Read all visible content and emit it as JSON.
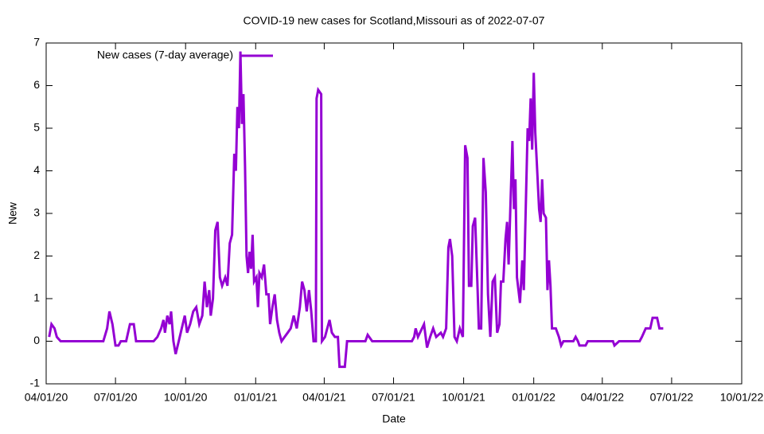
{
  "chart_data": {
    "type": "line",
    "title": "COVID-19 new cases for Scotland,Missouri as of 2022-07-07",
    "x_label": "Date",
    "y_label": "New",
    "legend_position": "top-left",
    "xlim": [
      "2020-04-01",
      "2022-10-01"
    ],
    "xticks": [
      {
        "value": "2020-04-01",
        "label": "04/01/20"
      },
      {
        "value": "2020-07-01",
        "label": "07/01/20"
      },
      {
        "value": "2020-10-01",
        "label": "10/01/20"
      },
      {
        "value": "2021-01-01",
        "label": "01/01/21"
      },
      {
        "value": "2021-04-01",
        "label": "04/01/21"
      },
      {
        "value": "2021-07-01",
        "label": "07/01/21"
      },
      {
        "value": "2021-10-01",
        "label": "10/01/21"
      },
      {
        "value": "2022-01-01",
        "label": "01/01/22"
      },
      {
        "value": "2022-04-01",
        "label": "04/01/22"
      },
      {
        "value": "2022-07-01",
        "label": "07/01/22"
      },
      {
        "value": "2022-10-01",
        "label": "10/01/22"
      }
    ],
    "ylim": [
      -1,
      7
    ],
    "yticks": [
      -1,
      0,
      1,
      2,
      3,
      4,
      5,
      6,
      7
    ],
    "x": [
      "2020-04-05",
      "2020-04-08",
      "2020-04-12",
      "2020-04-15",
      "2020-04-20",
      "2020-05-15",
      "2020-06-15",
      "2020-06-20",
      "2020-06-23",
      "2020-06-27",
      "2020-07-01",
      "2020-07-05",
      "2020-07-08",
      "2020-07-15",
      "2020-07-20",
      "2020-07-25",
      "2020-07-28",
      "2020-08-20",
      "2020-08-25",
      "2020-08-30",
      "2020-09-02",
      "2020-09-04",
      "2020-09-07",
      "2020-09-10",
      "2020-09-12",
      "2020-09-15",
      "2020-09-18",
      "2020-09-22",
      "2020-09-26",
      "2020-09-30",
      "2020-10-03",
      "2020-10-07",
      "2020-10-11",
      "2020-10-15",
      "2020-10-19",
      "2020-10-23",
      "2020-10-26",
      "2020-10-29",
      "2020-11-01",
      "2020-11-03",
      "2020-11-06",
      "2020-11-09",
      "2020-11-12",
      "2020-11-15",
      "2020-11-18",
      "2020-11-22",
      "2020-11-25",
      "2020-11-28",
      "2020-12-01",
      "2020-12-04",
      "2020-12-06",
      "2020-12-08",
      "2020-12-10",
      "2020-12-12",
      "2020-12-14",
      "2020-12-16",
      "2020-12-18",
      "2020-12-20",
      "2020-12-22",
      "2020-12-24",
      "2020-12-26",
      "2020-12-28",
      "2020-12-30",
      "2021-01-02",
      "2021-01-04",
      "2021-01-06",
      "2021-01-09",
      "2021-01-12",
      "2021-01-15",
      "2021-01-18",
      "2021-01-20",
      "2021-01-23",
      "2021-01-26",
      "2021-01-29",
      "2021-02-01",
      "2021-02-04",
      "2021-02-08",
      "2021-02-12",
      "2021-02-16",
      "2021-02-20",
      "2021-02-24",
      "2021-02-28",
      "2021-03-03",
      "2021-03-06",
      "2021-03-09",
      "2021-03-12",
      "2021-03-15",
      "2021-03-18",
      "2021-03-21",
      "2021-03-22",
      "2021-03-24",
      "2021-03-28",
      "2021-03-29",
      "2021-04-02",
      "2021-04-05",
      "2021-04-08",
      "2021-04-11",
      "2021-04-15",
      "2021-04-19",
      "2021-04-21",
      "2021-04-28",
      "2021-05-01",
      "2021-05-25",
      "2021-05-28",
      "2021-06-03",
      "2021-07-25",
      "2021-07-28",
      "2021-07-30",
      "2021-08-02",
      "2021-08-10",
      "2021-08-14",
      "2021-08-18",
      "2021-08-22",
      "2021-08-26",
      "2021-09-01",
      "2021-09-04",
      "2021-09-08",
      "2021-09-11",
      "2021-09-13",
      "2021-09-16",
      "2021-09-19",
      "2021-09-22",
      "2021-09-26",
      "2021-09-30",
      "2021-10-03",
      "2021-10-06",
      "2021-10-08",
      "2021-10-11",
      "2021-10-13",
      "2021-10-16",
      "2021-10-19",
      "2021-10-21",
      "2021-10-24",
      "2021-10-27",
      "2021-10-30",
      "2021-11-02",
      "2021-11-05",
      "2021-11-08",
      "2021-11-11",
      "2021-11-14",
      "2021-11-17",
      "2021-11-19",
      "2021-11-22",
      "2021-11-25",
      "2021-11-27",
      "2021-11-29",
      "2021-12-02",
      "2021-12-04",
      "2021-12-06",
      "2021-12-08",
      "2021-12-10",
      "2021-12-12",
      "2021-12-14",
      "2021-12-17",
      "2021-12-19",
      "2021-12-22",
      "2021-12-24",
      "2021-12-26",
      "2021-12-28",
      "2021-12-30",
      "2022-01-01",
      "2022-01-03",
      "2022-01-05",
      "2022-01-08",
      "2022-01-10",
      "2022-01-12",
      "2022-01-14",
      "2022-01-17",
      "2022-01-19",
      "2022-01-21",
      "2022-01-23",
      "2022-01-25",
      "2022-01-30",
      "2022-02-03",
      "2022-02-06",
      "2022-02-09",
      "2022-02-22",
      "2022-02-25",
      "2022-02-28",
      "2022-03-02",
      "2022-03-10",
      "2022-03-13",
      "2022-04-01",
      "2022-04-15",
      "2022-04-17",
      "2022-04-23",
      "2022-05-20",
      "2022-05-23",
      "2022-05-28",
      "2022-06-03",
      "2022-06-06",
      "2022-06-12",
      "2022-06-15",
      "2022-06-20"
    ],
    "series": [
      {
        "name": "New cases (7-day average)",
        "color": "#9400d3",
        "values": [
          0.1,
          0.4,
          0.3,
          0.1,
          0.0,
          0.0,
          0.0,
          0.3,
          0.7,
          0.4,
          -0.1,
          -0.1,
          0.0,
          0.0,
          0.4,
          0.4,
          0.0,
          0.0,
          0.1,
          0.3,
          0.5,
          0.2,
          0.6,
          0.4,
          0.7,
          0.0,
          -0.3,
          0.0,
          0.3,
          0.6,
          0.2,
          0.4,
          0.7,
          0.8,
          0.4,
          0.6,
          1.4,
          0.8,
          1.2,
          0.6,
          1.0,
          2.6,
          2.8,
          1.5,
          1.3,
          1.5,
          1.3,
          2.3,
          2.5,
          4.4,
          4.0,
          5.5,
          5.0,
          6.8,
          5.1,
          5.8,
          4.1,
          2.0,
          1.6,
          2.1,
          1.7,
          2.5,
          1.4,
          1.5,
          0.8,
          1.6,
          1.5,
          1.8,
          1.1,
          1.1,
          0.4,
          0.8,
          1.1,
          0.5,
          0.2,
          0.0,
          0.1,
          0.2,
          0.3,
          0.6,
          0.3,
          0.8,
          1.4,
          1.2,
          0.7,
          1.2,
          0.7,
          0.0,
          0.0,
          5.7,
          5.9,
          5.8,
          0.0,
          0.1,
          0.3,
          0.5,
          0.2,
          0.1,
          0.1,
          -0.6,
          -0.6,
          0.0,
          0.0,
          0.15,
          0.0,
          0.0,
          0.1,
          0.3,
          0.1,
          0.4,
          -0.15,
          0.1,
          0.3,
          0.1,
          0.2,
          0.1,
          0.3,
          2.2,
          2.4,
          2.0,
          0.1,
          0.0,
          0.3,
          0.1,
          4.6,
          4.3,
          1.3,
          1.3,
          2.7,
          2.9,
          1.4,
          0.3,
          0.3,
          4.3,
          3.5,
          1.1,
          0.1,
          1.4,
          1.5,
          0.2,
          0.4,
          1.4,
          1.4,
          2.4,
          2.8,
          1.8,
          3.5,
          4.7,
          3.1,
          3.8,
          1.5,
          1.2,
          0.9,
          1.9,
          1.2,
          3.5,
          5.0,
          4.7,
          5.7,
          4.5,
          6.3,
          4.9,
          4.2,
          3.1,
          2.8,
          3.8,
          3.0,
          2.9,
          1.2,
          1.9,
          1.3,
          0.3,
          0.3,
          0.1,
          -0.1,
          0.0,
          0.0,
          0.1,
          0.0,
          -0.1,
          -0.1,
          0.0,
          0.0,
          0.0,
          -0.1,
          0.0,
          0.0,
          0.1,
          0.3,
          0.3,
          0.55,
          0.55,
          0.3,
          0.3
        ]
      }
    ]
  }
}
